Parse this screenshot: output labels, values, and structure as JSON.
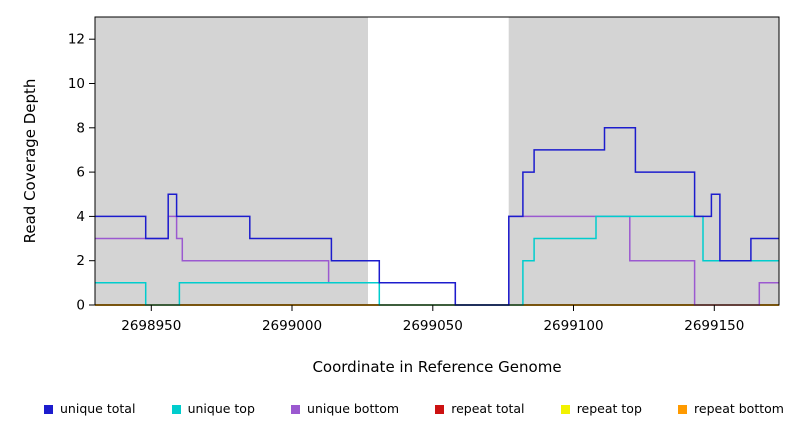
{
  "figure": {
    "xlabel": "Coordinate in Reference Genome",
    "ylabel": "Read Coverage Depth"
  },
  "chart_data": {
    "type": "line",
    "subtype": "step-coverage",
    "title": "",
    "xlabel": "Coordinate in Reference Genome",
    "ylabel": "Read Coverage Depth",
    "xlim": [
      2698930,
      2699173
    ],
    "ylim": [
      0,
      13
    ],
    "xticks": [
      2698950,
      2699000,
      2699050,
      2699100,
      2699150
    ],
    "yticks": [
      0,
      2,
      4,
      6,
      8,
      10,
      12
    ],
    "grid": false,
    "legend_position": "bottom",
    "plot_background": "#d4d4d4",
    "highlight_region": {
      "x0": 2699027,
      "x1": 2699077,
      "color": "#ffffff"
    },
    "axis_color": "#000000",
    "text_color": "#000000",
    "series": [
      {
        "name": "unique total",
        "color": "#1c1ccd",
        "points": [
          [
            2698930,
            4
          ],
          [
            2698948,
            3
          ],
          [
            2698956,
            5
          ],
          [
            2698959,
            4
          ],
          [
            2698985,
            3
          ],
          [
            2699014,
            2
          ],
          [
            2699031,
            1
          ],
          [
            2699058,
            0
          ],
          [
            2699077,
            4
          ],
          [
            2699082,
            6
          ],
          [
            2699086,
            7
          ],
          [
            2699111,
            8
          ],
          [
            2699122,
            6
          ],
          [
            2699143,
            4
          ],
          [
            2699149,
            5
          ],
          [
            2699152,
            2
          ],
          [
            2699163,
            3
          ],
          [
            2699173,
            3
          ]
        ]
      },
      {
        "name": "unique top",
        "color": "#00cdcd",
        "points": [
          [
            2698930,
            1
          ],
          [
            2698948,
            0
          ],
          [
            2698960,
            1
          ],
          [
            2699031,
            0
          ],
          [
            2699082,
            2
          ],
          [
            2699086,
            3
          ],
          [
            2699108,
            4
          ],
          [
            2699146,
            2
          ],
          [
            2699173,
            2
          ]
        ]
      },
      {
        "name": "unique bottom",
        "color": "#9b59d0",
        "points": [
          [
            2698930,
            3
          ],
          [
            2698956,
            4
          ],
          [
            2698959,
            3
          ],
          [
            2698961,
            2
          ],
          [
            2699013,
            1
          ],
          [
            2699058,
            0
          ],
          [
            2699077,
            4
          ],
          [
            2699120,
            2
          ],
          [
            2699143,
            0
          ],
          [
            2699166,
            1
          ],
          [
            2699173,
            1
          ]
        ]
      },
      {
        "name": "repeat total",
        "color": "#cc1111",
        "points": [
          [
            2698930,
            0
          ],
          [
            2699173,
            0
          ]
        ]
      },
      {
        "name": "repeat top",
        "color": "#f2f200",
        "points": [
          [
            2698930,
            0
          ],
          [
            2699173,
            0
          ]
        ]
      },
      {
        "name": "repeat bottom",
        "color": "#ff9a00",
        "points": [
          [
            2698930,
            0
          ],
          [
            2699173,
            0
          ]
        ]
      }
    ]
  }
}
